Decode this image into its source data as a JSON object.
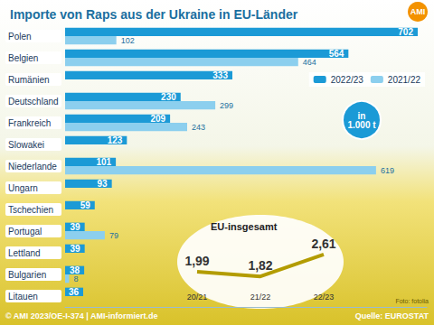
{
  "chart_data": [
    {
      "type": "bar",
      "title": "Importe von Raps aus der Ukraine in EU-Länder",
      "orientation": "horizontal",
      "categories": [
        "Polen",
        "Belgien",
        "Rumänien",
        "Deutschland",
        "Frankreich",
        "Slowakei",
        "Niederlande",
        "Ungarn",
        "Tschechien",
        "Portugal",
        "Lettland",
        "Bulgarien",
        "Litauen"
      ],
      "series": [
        {
          "name": "2022/23",
          "color": "#1b9ad6",
          "values": [
            702,
            564,
            333,
            230,
            209,
            123,
            101,
            93,
            59,
            39,
            39,
            38,
            36
          ]
        },
        {
          "name": "2021/22",
          "color": "#8ccfee",
          "values": [
            102,
            464,
            null,
            299,
            243,
            null,
            619,
            null,
            null,
            79,
            null,
            8,
            null
          ]
        }
      ],
      "xlim": [
        0,
        720
      ],
      "tick_labels": "y",
      "data_labels": true,
      "grid": false,
      "legend": "right",
      "unit": "in 1.000 t",
      "logo": "AMI",
      "footer": "© AMI 2023/OE-I-374 | AMI-informiert.de",
      "source": "Quelle: EUROSTAT",
      "photo_credit": "Foto: fotolia"
    },
    {
      "type": "line",
      "title": "EU-insgesamt",
      "categories": [
        "20/21",
        "21/22",
        "22/23"
      ],
      "values": [
        1.99,
        1.82,
        2.61
      ],
      "value_labels": [
        "1,99",
        "1,82",
        "2,61"
      ],
      "color": "#b39c00",
      "ylim": [
        1.5,
        3
      ],
      "tick_labels": "x",
      "data_labels": true
    }
  ]
}
